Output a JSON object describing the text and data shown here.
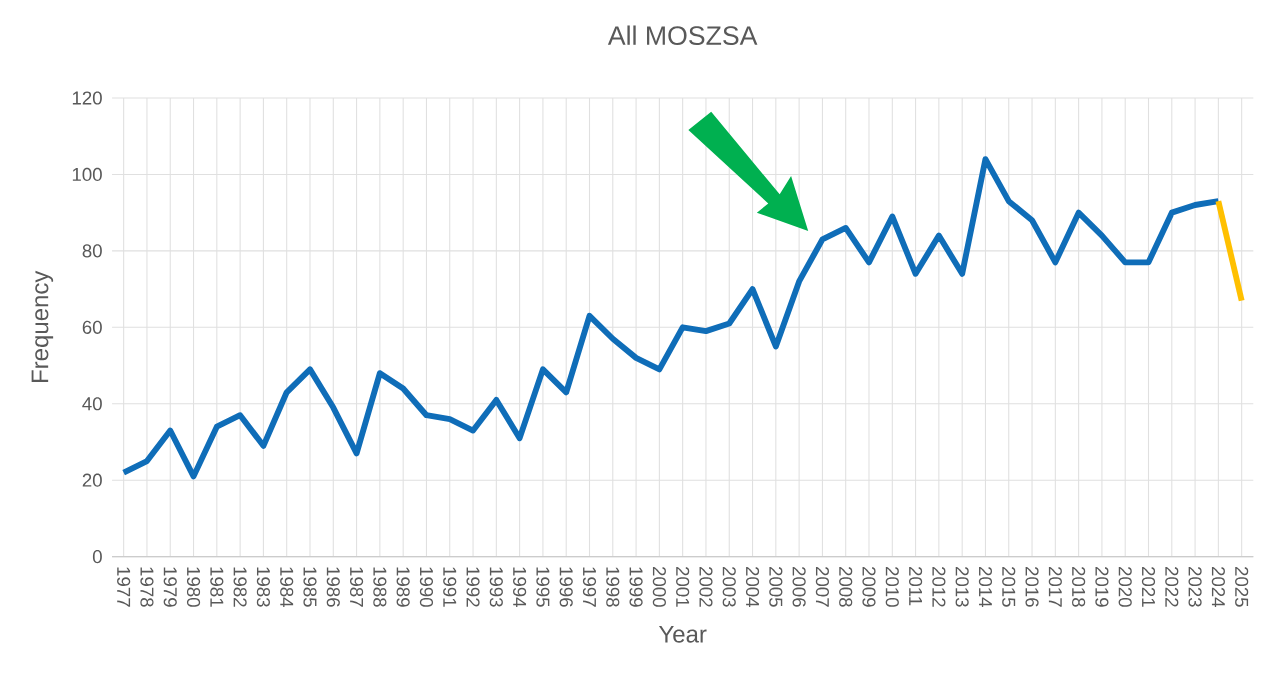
{
  "chart_data": {
    "type": "line",
    "title": "All MOSZSA",
    "xlabel": "Year",
    "ylabel": "Frequency",
    "categories": [
      "1977",
      "1978",
      "1979",
      "1980",
      "1981",
      "1982",
      "1983",
      "1984",
      "1985",
      "1986",
      "1987",
      "1988",
      "1989",
      "1990",
      "1991",
      "1992",
      "1993",
      "1994",
      "1995",
      "1996",
      "1997",
      "1998",
      "1999",
      "2000",
      "2001",
      "2002",
      "2003",
      "2004",
      "2005",
      "2006",
      "2007",
      "2008",
      "2009",
      "2010",
      "2011",
      "2012",
      "2013",
      "2014",
      "2015",
      "2016",
      "2017",
      "2018",
      "2019",
      "2020",
      "2021",
      "2022",
      "2023",
      "2024",
      "2025"
    ],
    "series": [
      {
        "color": "#0f6db8",
        "values": [
          22,
          25,
          33,
          21,
          34,
          37,
          29,
          43,
          49,
          39,
          27,
          48,
          44,
          37,
          36,
          33,
          41,
          31,
          49,
          43,
          63,
          57,
          52,
          49,
          60,
          59,
          61,
          70,
          55,
          72,
          83,
          86,
          77,
          89,
          74,
          84,
          74,
          104,
          93,
          88,
          77,
          90,
          84,
          77,
          77,
          90,
          92,
          93,
          null
        ]
      },
      {
        "color": "#ffc000",
        "values": [
          null,
          null,
          null,
          null,
          null,
          null,
          null,
          null,
          null,
          null,
          null,
          null,
          null,
          null,
          null,
          null,
          null,
          null,
          null,
          null,
          null,
          null,
          null,
          null,
          null,
          null,
          null,
          null,
          null,
          null,
          null,
          null,
          null,
          null,
          null,
          null,
          null,
          null,
          null,
          null,
          null,
          null,
          null,
          null,
          null,
          null,
          null,
          93,
          67
        ]
      }
    ],
    "ylim": [
      0,
      120
    ],
    "yticks": [
      0,
      20,
      40,
      60,
      80,
      100,
      120
    ],
    "grid": true,
    "marker": "none",
    "line_style": "solid"
  }
}
